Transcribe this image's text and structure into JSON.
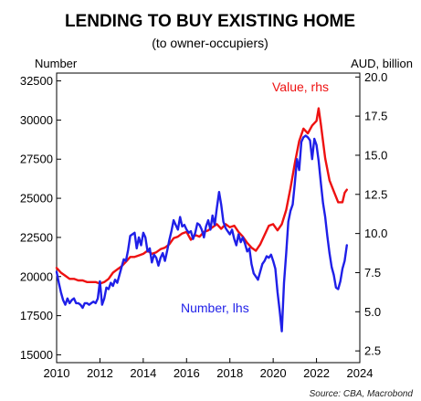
{
  "chart_data": {
    "type": "line",
    "title": "LENDING TO BUY EXISTING HOME",
    "subtitle": "(to owner-occupiers)",
    "left_axis_unit": "Number",
    "right_axis_unit": "AUD, billion",
    "x_range": [
      2010,
      2024
    ],
    "x_ticks": [
      "2010",
      "2012",
      "2014",
      "2016",
      "2018",
      "2020",
      "2022",
      "2024"
    ],
    "y_left_range": [
      14500,
      33000
    ],
    "y_left_ticks": [
      "15000",
      "17500",
      "20000",
      "22500",
      "25000",
      "27500",
      "30000",
      "32500"
    ],
    "y_right_range": [
      1.75,
      20.25
    ],
    "y_right_ticks": [
      "2.5",
      "5.0",
      "7.5",
      "10.0",
      "12.5",
      "15.0",
      "17.5",
      "20.0"
    ],
    "grid": false,
    "annotations": [
      "Value, rhs",
      "Number, lhs"
    ],
    "source": "Source: CBA, Macrobond",
    "series": [
      {
        "name": "Number, lhs",
        "axis": "left",
        "color": "#1f1fe8",
        "points": [
          [
            2010.0,
            20300
          ],
          [
            2010.1,
            19600
          ],
          [
            2010.2,
            19000
          ],
          [
            2010.3,
            18500
          ],
          [
            2010.4,
            18200
          ],
          [
            2010.5,
            18600
          ],
          [
            2010.6,
            18300
          ],
          [
            2010.7,
            18500
          ],
          [
            2010.8,
            18600
          ],
          [
            2010.9,
            18300
          ],
          [
            2011.0,
            18300
          ],
          [
            2011.1,
            18200
          ],
          [
            2011.2,
            18000
          ],
          [
            2011.3,
            18300
          ],
          [
            2011.4,
            18300
          ],
          [
            2011.5,
            18200
          ],
          [
            2011.6,
            18300
          ],
          [
            2011.7,
            18400
          ],
          [
            2011.8,
            18300
          ],
          [
            2011.9,
            18600
          ],
          [
            2012.0,
            19700
          ],
          [
            2012.1,
            18200
          ],
          [
            2012.2,
            18600
          ],
          [
            2012.3,
            19300
          ],
          [
            2012.4,
            19200
          ],
          [
            2012.5,
            19600
          ],
          [
            2012.6,
            19400
          ],
          [
            2012.7,
            19800
          ],
          [
            2012.8,
            19600
          ],
          [
            2012.9,
            20100
          ],
          [
            2013.0,
            20600
          ],
          [
            2013.1,
            21100
          ],
          [
            2013.2,
            21000
          ],
          [
            2013.3,
            21700
          ],
          [
            2013.4,
            22600
          ],
          [
            2013.5,
            22700
          ],
          [
            2013.6,
            22800
          ],
          [
            2013.7,
            21800
          ],
          [
            2013.8,
            22500
          ],
          [
            2013.9,
            22000
          ],
          [
            2014.0,
            22800
          ],
          [
            2014.1,
            22500
          ],
          [
            2014.2,
            21600
          ],
          [
            2014.3,
            21800
          ],
          [
            2014.4,
            20900
          ],
          [
            2014.5,
            21400
          ],
          [
            2014.6,
            21200
          ],
          [
            2014.7,
            20700
          ],
          [
            2014.8,
            21200
          ],
          [
            2014.9,
            21500
          ],
          [
            2015.0,
            21000
          ],
          [
            2015.1,
            21600
          ],
          [
            2015.2,
            22300
          ],
          [
            2015.3,
            22900
          ],
          [
            2015.4,
            23600
          ],
          [
            2015.5,
            23300
          ],
          [
            2015.6,
            23000
          ],
          [
            2015.7,
            23800
          ],
          [
            2015.8,
            23200
          ],
          [
            2015.9,
            23300
          ],
          [
            2016.0,
            23000
          ],
          [
            2016.1,
            22800
          ],
          [
            2016.2,
            22900
          ],
          [
            2016.3,
            22400
          ],
          [
            2016.4,
            22800
          ],
          [
            2016.5,
            23400
          ],
          [
            2016.6,
            23300
          ],
          [
            2016.7,
            23000
          ],
          [
            2016.8,
            22500
          ],
          [
            2016.9,
            23200
          ],
          [
            2017.0,
            23600
          ],
          [
            2017.1,
            23000
          ],
          [
            2017.2,
            23900
          ],
          [
            2017.3,
            23300
          ],
          [
            2017.4,
            24400
          ],
          [
            2017.5,
            25400
          ],
          [
            2017.6,
            24600
          ],
          [
            2017.7,
            23500
          ],
          [
            2017.8,
            23100
          ],
          [
            2017.9,
            22900
          ],
          [
            2018.0,
            22700
          ],
          [
            2018.1,
            23000
          ],
          [
            2018.2,
            22400
          ],
          [
            2018.3,
            22000
          ],
          [
            2018.4,
            22700
          ],
          [
            2018.5,
            22200
          ],
          [
            2018.6,
            22500
          ],
          [
            2018.7,
            22100
          ],
          [
            2018.8,
            21600
          ],
          [
            2018.9,
            21800
          ],
          [
            2019.0,
            20800
          ],
          [
            2019.1,
            20200
          ],
          [
            2019.2,
            20000
          ],
          [
            2019.3,
            19800
          ],
          [
            2019.4,
            20300
          ],
          [
            2019.5,
            20800
          ],
          [
            2019.6,
            21000
          ],
          [
            2019.7,
            21300
          ],
          [
            2019.8,
            21200
          ],
          [
            2019.9,
            21400
          ],
          [
            2020.0,
            21000
          ],
          [
            2020.1,
            20500
          ],
          [
            2020.2,
            19000
          ],
          [
            2020.3,
            17800
          ],
          [
            2020.4,
            16500
          ],
          [
            2020.5,
            19600
          ],
          [
            2020.6,
            21500
          ],
          [
            2020.7,
            23500
          ],
          [
            2020.8,
            24200
          ],
          [
            2020.9,
            24600
          ],
          [
            2021.0,
            26000
          ],
          [
            2021.1,
            27500
          ],
          [
            2021.2,
            26800
          ],
          [
            2021.3,
            28600
          ],
          [
            2021.4,
            28900
          ],
          [
            2021.5,
            29000
          ],
          [
            2021.6,
            28900
          ],
          [
            2021.7,
            28700
          ],
          [
            2021.8,
            27500
          ],
          [
            2021.9,
            28800
          ],
          [
            2022.0,
            28400
          ],
          [
            2022.1,
            27400
          ],
          [
            2022.2,
            26000
          ],
          [
            2022.3,
            24700
          ],
          [
            2022.4,
            23800
          ],
          [
            2022.5,
            22600
          ],
          [
            2022.6,
            21500
          ],
          [
            2022.7,
            20600
          ],
          [
            2022.8,
            20100
          ],
          [
            2022.9,
            19300
          ],
          [
            2023.0,
            19200
          ],
          [
            2023.1,
            19700
          ],
          [
            2023.2,
            20500
          ],
          [
            2023.3,
            21000
          ],
          [
            2023.4,
            22000
          ]
        ]
      },
      {
        "name": "Value, rhs",
        "axis": "right",
        "color": "#ee1111",
        "points": [
          [
            2010.0,
            7.8
          ],
          [
            2010.2,
            7.5
          ],
          [
            2010.4,
            7.3
          ],
          [
            2010.6,
            7.1
          ],
          [
            2010.8,
            7.1
          ],
          [
            2011.0,
            7.0
          ],
          [
            2011.2,
            7.0
          ],
          [
            2011.4,
            6.9
          ],
          [
            2011.6,
            6.9
          ],
          [
            2011.8,
            6.9
          ],
          [
            2012.0,
            6.8
          ],
          [
            2012.2,
            6.9
          ],
          [
            2012.4,
            7.1
          ],
          [
            2012.6,
            7.5
          ],
          [
            2012.8,
            7.7
          ],
          [
            2013.0,
            7.9
          ],
          [
            2013.2,
            8.2
          ],
          [
            2013.4,
            8.5
          ],
          [
            2013.6,
            8.5
          ],
          [
            2013.8,
            8.6
          ],
          [
            2014.0,
            8.7
          ],
          [
            2014.2,
            8.9
          ],
          [
            2014.4,
            8.7
          ],
          [
            2014.6,
            8.8
          ],
          [
            2014.8,
            9.0
          ],
          [
            2015.0,
            9.1
          ],
          [
            2015.2,
            9.3
          ],
          [
            2015.4,
            9.7
          ],
          [
            2015.6,
            9.8
          ],
          [
            2015.8,
            10.0
          ],
          [
            2016.0,
            10.1
          ],
          [
            2016.2,
            9.6
          ],
          [
            2016.4,
            9.9
          ],
          [
            2016.6,
            9.8
          ],
          [
            2016.8,
            10.1
          ],
          [
            2017.0,
            10.2
          ],
          [
            2017.2,
            10.4
          ],
          [
            2017.4,
            10.6
          ],
          [
            2017.6,
            10.3
          ],
          [
            2017.8,
            10.6
          ],
          [
            2018.0,
            10.4
          ],
          [
            2018.2,
            10.5
          ],
          [
            2018.4,
            10.1
          ],
          [
            2018.6,
            9.8
          ],
          [
            2018.8,
            9.4
          ],
          [
            2019.0,
            9.1
          ],
          [
            2019.2,
            8.9
          ],
          [
            2019.4,
            9.3
          ],
          [
            2019.6,
            9.9
          ],
          [
            2019.8,
            10.5
          ],
          [
            2020.0,
            10.6
          ],
          [
            2020.2,
            10.2
          ],
          [
            2020.4,
            10.6
          ],
          [
            2020.6,
            11.5
          ],
          [
            2020.8,
            12.9
          ],
          [
            2021.0,
            14.5
          ],
          [
            2021.2,
            15.9
          ],
          [
            2021.4,
            16.7
          ],
          [
            2021.6,
            16.4
          ],
          [
            2021.8,
            16.9
          ],
          [
            2022.0,
            17.2
          ],
          [
            2022.1,
            18.0
          ],
          [
            2022.2,
            17.0
          ],
          [
            2022.4,
            14.8
          ],
          [
            2022.6,
            13.4
          ],
          [
            2022.8,
            12.7
          ],
          [
            2023.0,
            12.0
          ],
          [
            2023.2,
            12.0
          ],
          [
            2023.3,
            12.6
          ],
          [
            2023.4,
            12.8
          ]
        ]
      }
    ]
  }
}
